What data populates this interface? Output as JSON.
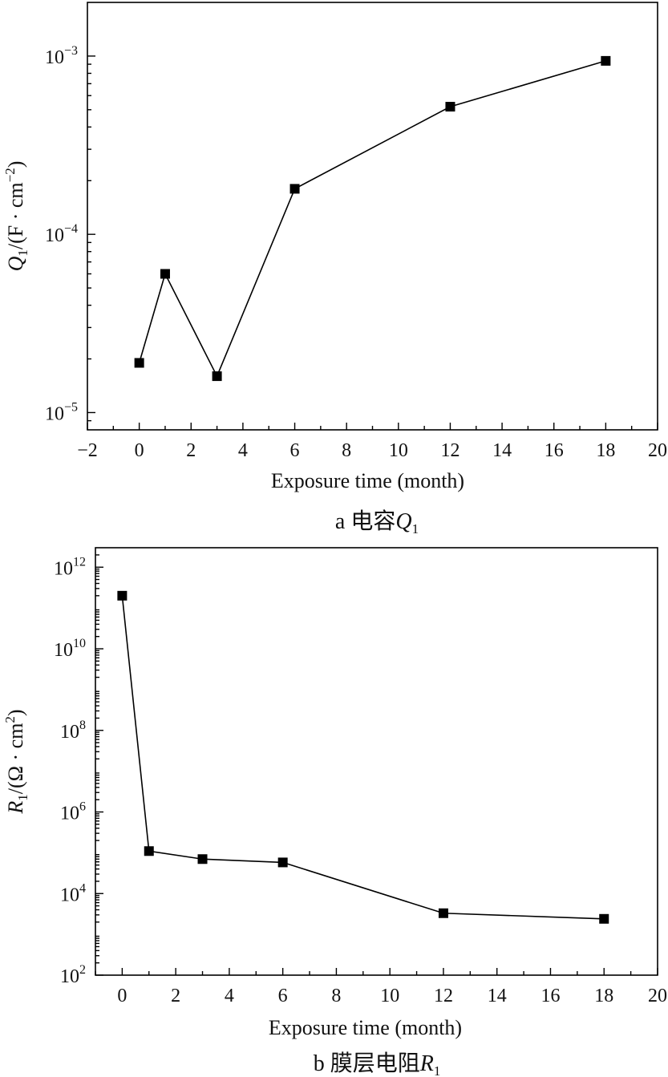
{
  "chart_data": [
    {
      "type": "line",
      "yscale": "log",
      "x": [
        0,
        1,
        3,
        6,
        12,
        18
      ],
      "series": [
        {
          "values": [
            1.9e-05,
            6e-05,
            1.6e-05,
            0.00018,
            0.00052,
            0.00094
          ]
        }
      ],
      "xlabel": "Exposure time (month)",
      "ylabel": "Q1/(F · cm−2)",
      "xlim": [
        -2,
        20
      ],
      "ylim": [
        8e-06,
        0.002
      ],
      "x_ticks": [
        "−2",
        "0",
        "2",
        "4",
        "6",
        "8",
        "10",
        "12",
        "14",
        "16",
        "18",
        "20"
      ],
      "y_ticks": [
        {
          "value": 1e-05,
          "base": "10",
          "exp": "−5"
        },
        {
          "value": 0.0001,
          "base": "10",
          "exp": "−4"
        },
        {
          "value": 0.001,
          "base": "10",
          "exp": "−3"
        }
      ],
      "caption": "a 电容Q1",
      "grid": false,
      "marker": "square"
    },
    {
      "type": "line",
      "yscale": "log",
      "x": [
        0,
        1,
        3,
        6,
        12,
        18
      ],
      "series": [
        {
          "values": [
            200000000000.0,
            110000.0,
            70000.0,
            58000.0,
            3300.0,
            2400.0
          ]
        }
      ],
      "xlabel": "Exposure time (month)",
      "ylabel": "R1/(Ω · cm2)",
      "xlim": [
        -1,
        20
      ],
      "ylim": [
        100.0,
        3000000000000.0
      ],
      "x_ticks": [
        "0",
        "2",
        "4",
        "6",
        "8",
        "10",
        "12",
        "14",
        "16",
        "18",
        "20"
      ],
      "y_ticks": [
        {
          "value": 100.0,
          "base": "10",
          "exp": "2"
        },
        {
          "value": 10000.0,
          "base": "10",
          "exp": "4"
        },
        {
          "value": 1000000.0,
          "base": "10",
          "exp": "6"
        },
        {
          "value": 100000000.0,
          "base": "10",
          "exp": "8"
        },
        {
          "value": 10000000000.0,
          "base": "10",
          "exp": "10"
        },
        {
          "value": 1000000000000.0,
          "base": "10",
          "exp": "12"
        }
      ],
      "caption": "b 膜层电阻R1",
      "grid": false,
      "marker": "square"
    }
  ]
}
